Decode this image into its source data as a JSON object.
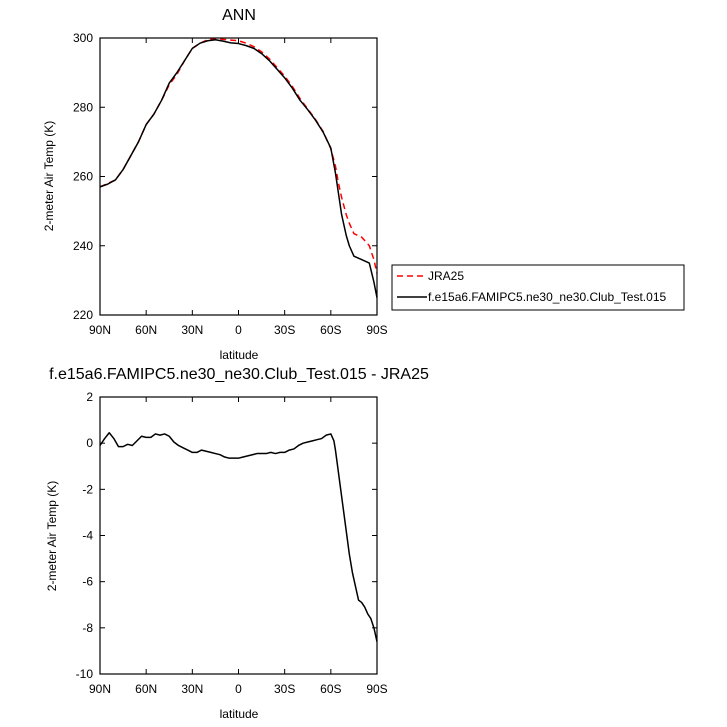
{
  "chart_data": [
    {
      "type": "line",
      "title": "ANN",
      "xlabel": "latitude",
      "ylabel": "2-meter Air Temp (K)",
      "xlim": [
        90,
        -90
      ],
      "ylim": [
        220,
        300
      ],
      "xticks": [
        90,
        60,
        30,
        0,
        -30,
        -60,
        -90
      ],
      "xtick_labels": [
        "90N",
        "60N",
        "30N",
        "0",
        "30S",
        "60S",
        "90S"
      ],
      "yticks": [
        220,
        240,
        260,
        280,
        300
      ],
      "ytick_labels": [
        "220",
        "240",
        "260",
        "280",
        "300"
      ],
      "legend_position": "right",
      "series": [
        {
          "name": "JRA25",
          "color": "#ff0000",
          "dash": "dashed",
          "x": [
            90,
            85,
            80,
            75,
            70,
            65,
            60,
            55,
            50,
            45,
            40,
            35,
            30,
            25,
            20,
            15,
            10,
            5,
            0,
            -5,
            -10,
            -15,
            -20,
            -25,
            -30,
            -35,
            -40,
            -45,
            -50,
            -55,
            -60,
            -63,
            -65,
            -67,
            -70,
            -72,
            -75,
            -80,
            -85,
            -88,
            -90
          ],
          "y": [
            257,
            258,
            259,
            262,
            266,
            270,
            275,
            278,
            282,
            286.5,
            289.5,
            293.5,
            297,
            298.5,
            299.5,
            299.8,
            299.6,
            299.4,
            299.2,
            298.5,
            297.5,
            296,
            294,
            291.5,
            289,
            286,
            282.5,
            279.5,
            276.5,
            273,
            268,
            263,
            258,
            254,
            249,
            246.5,
            243.5,
            242.5,
            240,
            236,
            232
          ]
        },
        {
          "name": "f.e15a6.FAMIPC5.ne30_ne30.Club_Test.015",
          "color": "#000000",
          "dash": "solid",
          "x": [
            90,
            85,
            80,
            75,
            70,
            65,
            60,
            55,
            50,
            45,
            40,
            35,
            30,
            25,
            20,
            15,
            10,
            5,
            0,
            -5,
            -10,
            -15,
            -20,
            -25,
            -30,
            -35,
            -40,
            -45,
            -50,
            -55,
            -60,
            -63,
            -65,
            -67,
            -70,
            -72,
            -75,
            -80,
            -85,
            -88,
            -90
          ],
          "y": [
            257,
            257.8,
            259,
            262,
            266,
            270,
            275,
            278,
            282,
            287,
            290,
            293.5,
            297,
            298.5,
            299.2,
            299.5,
            299.1,
            298.6,
            298.4,
            297.8,
            297,
            295.5,
            293.5,
            291,
            288.5,
            285.5,
            282,
            279.3,
            276.3,
            272.8,
            268.2,
            261,
            255,
            249,
            243,
            240,
            237,
            236,
            235,
            229.5,
            225
          ]
        }
      ]
    },
    {
      "type": "line",
      "title": "f.e15a6.FAMIPC5.ne30_ne30.Club_Test.015 - JRA25",
      "xlabel": "latitude",
      "ylabel": "2-meter Air Temp (K)",
      "xlim": [
        90,
        -90
      ],
      "ylim": [
        -10,
        2
      ],
      "xticks": [
        90,
        60,
        30,
        0,
        -30,
        -60,
        -90
      ],
      "xtick_labels": [
        "90N",
        "60N",
        "30N",
        "0",
        "30S",
        "60S",
        "90S"
      ],
      "yticks": [
        -10,
        -8,
        -6,
        -4,
        -2,
        0,
        2
      ],
      "ytick_labels": [
        "-10",
        "-8",
        "-6",
        "-4",
        "-2",
        "0",
        "2"
      ],
      "series": [
        {
          "color": "#000000",
          "dash": "solid",
          "x": [
            90,
            87,
            84,
            81,
            78,
            75,
            72,
            69,
            66,
            63,
            60,
            57,
            54,
            51,
            48,
            45,
            42,
            39,
            36,
            33,
            30,
            27,
            24,
            21,
            18,
            15,
            12,
            9,
            6,
            3,
            0,
            -3,
            -6,
            -9,
            -12,
            -15,
            -18,
            -21,
            -24,
            -27,
            -30,
            -33,
            -36,
            -39,
            -42,
            -45,
            -48,
            -51,
            -54,
            -57,
            -60,
            -62,
            -63,
            -64,
            -66,
            -68,
            -70,
            -72,
            -74,
            -76,
            -78,
            -80,
            -82,
            -84,
            -86,
            -88,
            -90
          ],
          "y": [
            -0.1,
            0.2,
            0.45,
            0.2,
            -0.15,
            -0.15,
            -0.05,
            -0.1,
            0.1,
            0.3,
            0.25,
            0.25,
            0.4,
            0.35,
            0.4,
            0.3,
            0.05,
            -0.1,
            -0.2,
            -0.3,
            -0.4,
            -0.4,
            -0.3,
            -0.35,
            -0.4,
            -0.45,
            -0.5,
            -0.6,
            -0.65,
            -0.65,
            -0.65,
            -0.6,
            -0.55,
            -0.5,
            -0.45,
            -0.45,
            -0.45,
            -0.4,
            -0.45,
            -0.4,
            -0.4,
            -0.3,
            -0.25,
            -0.1,
            0.0,
            0.05,
            0.1,
            0.15,
            0.2,
            0.35,
            0.4,
            0.1,
            -0.3,
            -0.8,
            -1.8,
            -2.8,
            -3.8,
            -4.8,
            -5.6,
            -6.2,
            -6.8,
            -6.9,
            -7.1,
            -7.4,
            -7.6,
            -8.0,
            -8.6
          ]
        }
      ]
    }
  ]
}
